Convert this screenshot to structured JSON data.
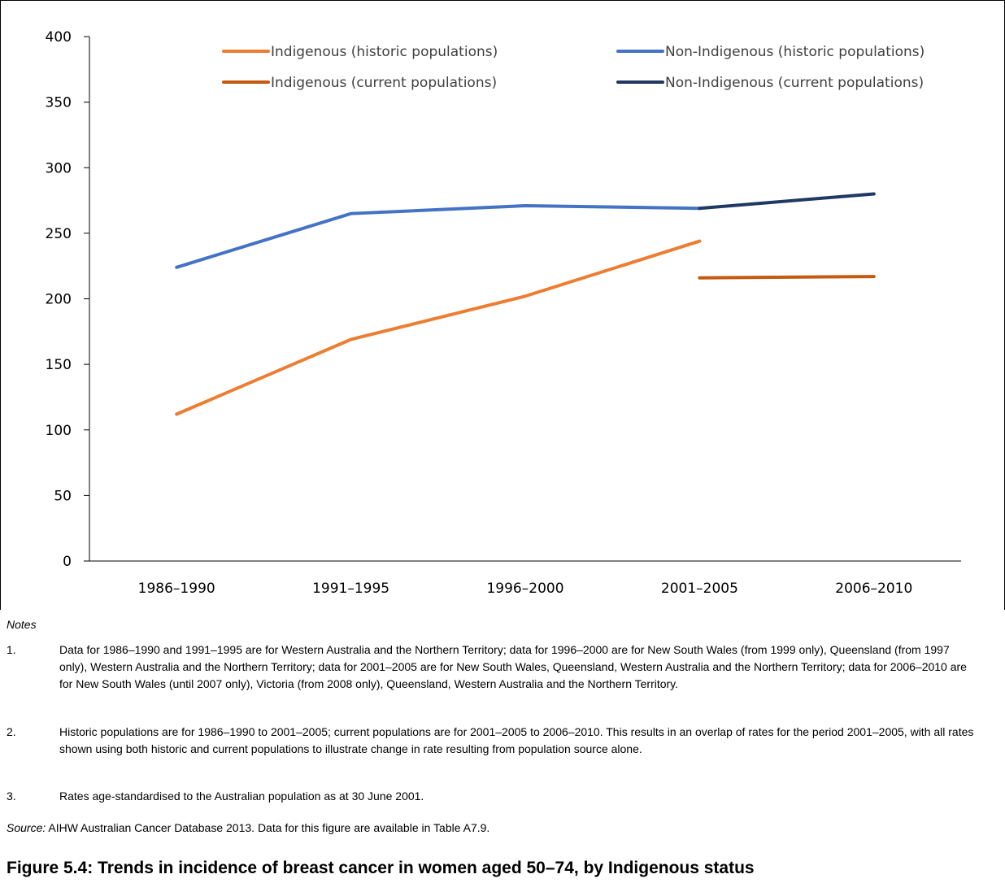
{
  "chart_data": {
    "type": "line",
    "categories": [
      "1986–1990",
      "1991–1995",
      "1996–2000",
      "2001–2005",
      "2006–2010"
    ],
    "ylim": [
      0,
      400
    ],
    "yticks": [
      "0",
      "50",
      "100",
      "150",
      "200",
      "250",
      "300",
      "350",
      "400"
    ],
    "grid": false,
    "legend_placement": "top",
    "series": [
      {
        "name": "Indigenous (historic populations)",
        "color": "#ED7D31",
        "values": [
          112,
          169,
          202,
          244,
          null
        ]
      },
      {
        "name": "Non-Indigenous (historic populations)",
        "color": "#4472C4",
        "values": [
          224,
          265,
          271,
          269,
          null
        ]
      },
      {
        "name": "Indigenous (current populations)",
        "color": "#C55A11",
        "values": [
          null,
          null,
          null,
          216,
          217
        ]
      },
      {
        "name": "Non-Indigenous (current populations)",
        "color": "#203864",
        "values": [
          null,
          null,
          null,
          269,
          280
        ]
      }
    ]
  },
  "notes": {
    "heading": "Notes",
    "items": [
      {
        "num": "1.",
        "text": "Data for 1986–1990 and 1991–1995 are for Western Australia and the Northern Territory; data for 1996–2000 are for New South Wales (from 1999 only), Queensland (from 1997 only), Western Australia and the Northern Territory; data for 2001–2005 are for New South Wales, Queensland, Western Australia and the Northern Territory; data for 2006–2010 are for New South Wales (until 2007 only), Victoria (from 2008 only), Queensland, Western Australia and the Northern Territory."
      },
      {
        "num": "2.",
        "text": "Historic populations are for 1986–1990 to 2001–2005; current populations are for 2001–2005 to 2006–2010. This results in an overlap of rates for the period 2001–2005, with all rates shown using both historic and current populations to illustrate change in rate resulting from population source alone."
      },
      {
        "num": "3.",
        "text": "Rates age-standardised to the Australian population as at 30 June 2001."
      }
    ]
  },
  "source": {
    "label": "Source:",
    "text": " AIHW Australian Cancer Database 2013. Data for this figure are available in Table A7.9."
  },
  "figure_title": "Figure 5.4: Trends in incidence of breast cancer in women aged 50–74, by Indigenous status"
}
